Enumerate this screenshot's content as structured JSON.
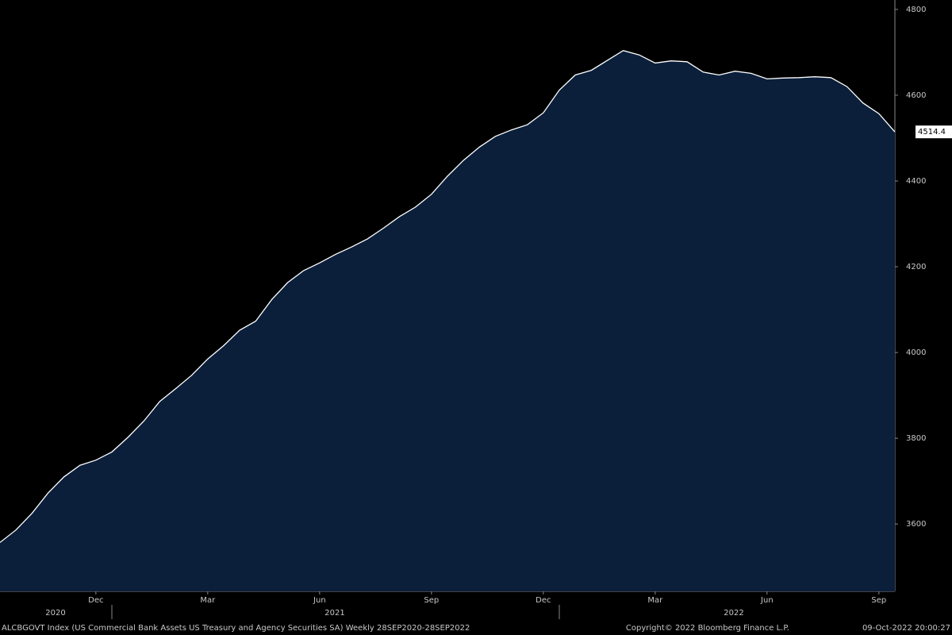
{
  "chart_data": {
    "type": "area",
    "categories": [
      null,
      null,
      null,
      null,
      null,
      null,
      "Dec",
      null,
      null,
      null,
      null,
      null,
      null,
      "Mar",
      null,
      null,
      null,
      null,
      null,
      null,
      "Jun",
      null,
      null,
      null,
      null,
      null,
      null,
      "Sep",
      null,
      null,
      null,
      null,
      null,
      null,
      "Dec",
      null,
      null,
      null,
      null,
      null,
      null,
      "Mar",
      null,
      null,
      null,
      null,
      null,
      null,
      "Jun",
      null,
      null,
      null,
      null,
      null,
      null,
      "Sep",
      null
    ],
    "values": [
      3557,
      3586,
      3625,
      3672,
      3710,
      3737,
      3749,
      3768,
      3802,
      3840,
      3886,
      3916,
      3947,
      3985,
      4016,
      4052,
      4073,
      4123,
      4163,
      4191,
      4209,
      4229,
      4246,
      4265,
      4290,
      4317,
      4339,
      4369,
      4411,
      4448,
      4479,
      4504,
      4519,
      4531,
      4559,
      4612,
      4647,
      4658,
      4681,
      4704,
      4694,
      4675,
      4680,
      4678,
      4654,
      4647,
      4656,
      4651,
      4638,
      4640,
      4641,
      4643,
      4641,
      4620,
      4582,
      4557,
      4514.4
    ],
    "color": "#0b1f3b",
    "line_color": "#ffffff",
    "ylim": [
      3443,
      4822
    ],
    "yticks": [
      3600,
      3800,
      4000,
      4200,
      4400,
      4600,
      4800
    ],
    "years": [
      "2020",
      "2021",
      "2022"
    ]
  },
  "footer": {
    "description": "ALCBGOVT Index (US Commercial Bank Assets US Treasury and Agency Securities SA)  Weekly 28SEP2020-28SEP2022",
    "copyright": "Copyright© 2022 Bloomberg Finance L.P.",
    "timestamp": "09-Oct-2022 20:00:27"
  }
}
